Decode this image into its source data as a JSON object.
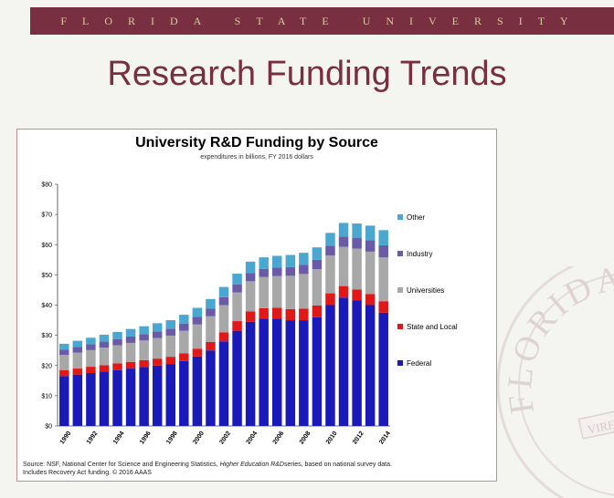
{
  "banner": {
    "text": "FLORIDA STATE UNIVERSITY"
  },
  "slide": {
    "title": "Research Funding Trends"
  },
  "seal": {
    "text_top": "FLORIDA ST",
    "ribbon": "VIRES"
  },
  "colors": {
    "brand": "#782f40",
    "gold": "#d9c9a0",
    "federal": "#1a1ab8",
    "state_local": "#e01818",
    "universities": "#a8a8a8",
    "industry": "#6a5aa8",
    "other": "#4aa8d0"
  },
  "chart_data": {
    "type": "bar",
    "stacked": true,
    "title": "University R&D Funding by Source",
    "subtitle": "expenditures in billions, FY 2016 dollars",
    "ylim": [
      0,
      80
    ],
    "yticks": [
      "$0",
      "$10",
      "$20",
      "$30",
      "$40",
      "$50",
      "$60",
      "$70",
      "$80"
    ],
    "xtick_labels": [
      "1990",
      "1992",
      "1994",
      "1996",
      "1998",
      "2000",
      "2002",
      "2004",
      "2006",
      "2008",
      "2010",
      "2012",
      "2014"
    ],
    "legend_position": "right",
    "categories": [
      "1990",
      "1991",
      "1992",
      "1993",
      "1994",
      "1995",
      "1996",
      "1997",
      "1998",
      "1999",
      "2000",
      "2001",
      "2002",
      "2003",
      "2004",
      "2005",
      "2006",
      "2007",
      "2008",
      "2009",
      "2010",
      "2011",
      "2012",
      "2013",
      "2014"
    ],
    "series": [
      {
        "name": "Federal",
        "color": "#1a1ab8",
        "values": [
          16.5,
          17.0,
          17.5,
          18.0,
          18.5,
          19.0,
          19.5,
          20.0,
          20.5,
          21.5,
          23.0,
          25.0,
          28.0,
          31.5,
          34.5,
          35.5,
          35.5,
          35.0,
          35.0,
          36.0,
          40.0,
          42.5,
          41.5,
          40.0,
          37.5
        ]
      },
      {
        "name": "State and Local",
        "color": "#e01818",
        "values": [
          2.0,
          2.0,
          2.1,
          2.1,
          2.2,
          2.2,
          2.3,
          2.3,
          2.4,
          2.5,
          2.6,
          2.8,
          3.0,
          3.2,
          3.4,
          3.5,
          3.6,
          3.7,
          3.8,
          3.9,
          3.9,
          3.8,
          3.7,
          3.7,
          3.8
        ]
      },
      {
        "name": "Universities",
        "color": "#a8a8a8",
        "values": [
          5.0,
          5.3,
          5.5,
          5.8,
          6.0,
          6.3,
          6.5,
          6.8,
          7.0,
          7.5,
          8.0,
          8.5,
          9.0,
          9.5,
          10.0,
          10.3,
          10.5,
          11.0,
          11.5,
          12.0,
          12.5,
          13.0,
          13.5,
          14.0,
          14.5
        ]
      },
      {
        "name": "Industry",
        "color": "#6a5aa8",
        "values": [
          1.7,
          1.8,
          1.9,
          2.0,
          2.0,
          2.1,
          2.1,
          2.2,
          2.3,
          2.4,
          2.5,
          2.5,
          2.6,
          2.6,
          2.7,
          2.7,
          2.8,
          2.9,
          3.0,
          3.1,
          3.2,
          3.4,
          3.6,
          3.8,
          4.0
        ]
      },
      {
        "name": "Other",
        "color": "#4aa8d0",
        "values": [
          2.0,
          2.1,
          2.2,
          2.3,
          2.4,
          2.5,
          2.6,
          2.7,
          2.8,
          2.9,
          3.0,
          3.2,
          3.4,
          3.6,
          3.8,
          3.8,
          3.9,
          4.0,
          4.0,
          4.1,
          4.3,
          4.5,
          4.7,
          4.8,
          5.0
        ]
      }
    ],
    "source": {
      "prefix": "Source: NSF, National Center for Science and Engineering Statistics, ",
      "italic": "Higher Education R&D",
      "suffix": "series, based on national survey data.",
      "line2": "Includes Recovery Act funding. © 2016 AAAS"
    }
  }
}
